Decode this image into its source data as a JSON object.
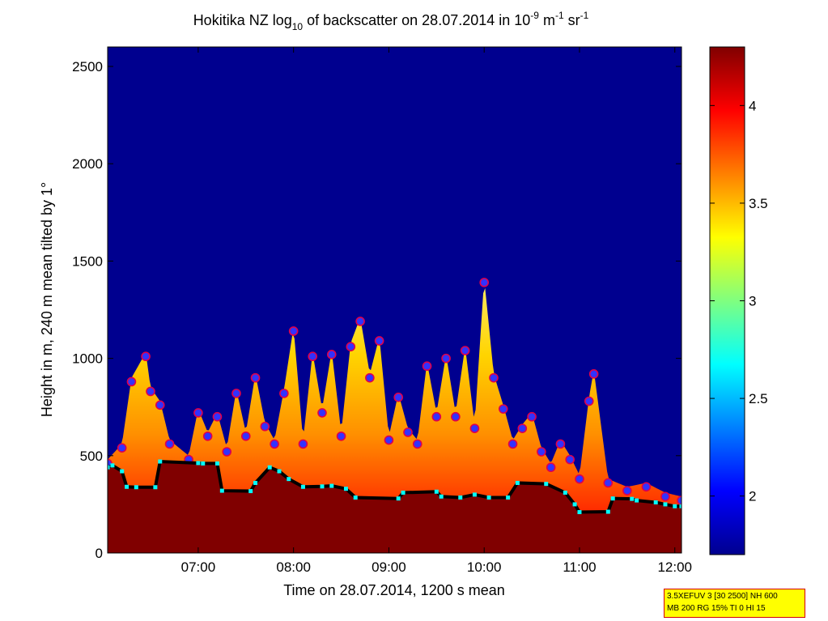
{
  "chart_data": {
    "type": "heatmap",
    "title_parts": {
      "pre": "Hokitika NZ log",
      "sub": "10",
      "mid": " of backscatter on 28.07.2014 in 10",
      "sup1": "-9",
      "mid2": " m",
      "sup2": "-1",
      "mid3": " sr",
      "sup3": "-1"
    },
    "xlabel": "Time on 28.07.2014, 1200 s mean",
    "ylabel": "Height in m, 240 m mean tilted by 1°",
    "x_ticks": [
      "07:00",
      "08:00",
      "09:00",
      "10:00",
      "11:00",
      "12:00"
    ],
    "x_tick_hours": [
      7,
      8,
      9,
      10,
      11,
      12
    ],
    "xlim_hours": [
      6.05,
      12.07
    ],
    "y_ticks": [
      "0",
      "500",
      "1000",
      "1500",
      "2000",
      "2500"
    ],
    "y_tick_values": [
      0,
      500,
      1000,
      1500,
      2000,
      2500
    ],
    "ylim": [
      0,
      2600
    ],
    "colorbar": {
      "range": [
        1.7,
        4.3
      ],
      "ticks": [
        "2",
        "2.5",
        "3",
        "3.5",
        "4"
      ],
      "tick_values": [
        2,
        2.5,
        3,
        3.5,
        4
      ],
      "colormap": "jet"
    },
    "colors": {
      "background": "#00008f",
      "saturated": "#800000",
      "markers_fill": "#3232ff",
      "markers_ring": "#e0004a",
      "base_line": "#000000",
      "base_points": "#00ffff"
    },
    "cloud_base_height_m": [
      [
        6.05,
        440
      ],
      [
        6.1,
        450
      ],
      [
        6.2,
        420
      ],
      [
        6.25,
        340
      ],
      [
        6.35,
        338
      ],
      [
        6.55,
        338
      ],
      [
        6.6,
        470
      ],
      [
        7.0,
        462
      ],
      [
        7.05,
        460
      ],
      [
        7.2,
        460
      ],
      [
        7.25,
        320
      ],
      [
        7.55,
        318
      ],
      [
        7.6,
        360
      ],
      [
        7.75,
        440
      ],
      [
        7.85,
        420
      ],
      [
        7.95,
        380
      ],
      [
        8.1,
        340
      ],
      [
        8.3,
        342
      ],
      [
        8.4,
        345
      ],
      [
        8.55,
        330
      ],
      [
        8.65,
        285
      ],
      [
        9.1,
        280
      ],
      [
        9.15,
        310
      ],
      [
        9.5,
        315
      ],
      [
        9.55,
        290
      ],
      [
        9.75,
        285
      ],
      [
        9.9,
        300
      ],
      [
        10.05,
        285
      ],
      [
        10.25,
        285
      ],
      [
        10.35,
        360
      ],
      [
        10.65,
        355
      ],
      [
        10.85,
        310
      ],
      [
        10.95,
        250
      ],
      [
        11.0,
        210
      ],
      [
        11.3,
        212
      ],
      [
        11.35,
        280
      ],
      [
        11.55,
        278
      ],
      [
        11.6,
        270
      ],
      [
        11.8,
        260
      ],
      [
        11.9,
        250
      ],
      [
        12.0,
        240
      ],
      [
        12.07,
        240
      ]
    ],
    "boundary_layer_top_m": [
      [
        6.05,
        460
      ],
      [
        6.2,
        540
      ],
      [
        6.3,
        880
      ],
      [
        6.45,
        1010
      ],
      [
        6.5,
        830
      ],
      [
        6.6,
        760
      ],
      [
        6.7,
        560
      ],
      [
        6.9,
        480
      ],
      [
        7.0,
        720
      ],
      [
        7.1,
        600
      ],
      [
        7.2,
        700
      ],
      [
        7.3,
        520
      ],
      [
        7.4,
        820
      ],
      [
        7.5,
        600
      ],
      [
        7.6,
        900
      ],
      [
        7.7,
        650
      ],
      [
        7.8,
        560
      ],
      [
        7.9,
        820
      ],
      [
        8.0,
        1140
      ],
      [
        8.1,
        560
      ],
      [
        8.2,
        1010
      ],
      [
        8.3,
        720
      ],
      [
        8.4,
        1020
      ],
      [
        8.5,
        600
      ],
      [
        8.6,
        1060
      ],
      [
        8.7,
        1190
      ],
      [
        8.8,
        900
      ],
      [
        8.9,
        1090
      ],
      [
        9.0,
        580
      ],
      [
        9.1,
        800
      ],
      [
        9.2,
        620
      ],
      [
        9.3,
        560
      ],
      [
        9.4,
        960
      ],
      [
        9.5,
        700
      ],
      [
        9.6,
        1000
      ],
      [
        9.7,
        700
      ],
      [
        9.8,
        1040
      ],
      [
        9.9,
        640
      ],
      [
        10.0,
        1390
      ],
      [
        10.1,
        900
      ],
      [
        10.2,
        740
      ],
      [
        10.3,
        560
      ],
      [
        10.4,
        640
      ],
      [
        10.5,
        700
      ],
      [
        10.6,
        520
      ],
      [
        10.7,
        440
      ],
      [
        10.8,
        560
      ],
      [
        10.9,
        480
      ],
      [
        11.0,
        380
      ],
      [
        11.1,
        780
      ],
      [
        11.15,
        920
      ],
      [
        11.3,
        360
      ],
      [
        11.5,
        320
      ],
      [
        11.7,
        340
      ],
      [
        11.9,
        290
      ],
      [
        12.07,
        270
      ]
    ],
    "info": [
      "3.5XEFUV 3 [30 2500] NH 600",
      "MB 200 RG 15% TI 0 HI 15"
    ]
  }
}
